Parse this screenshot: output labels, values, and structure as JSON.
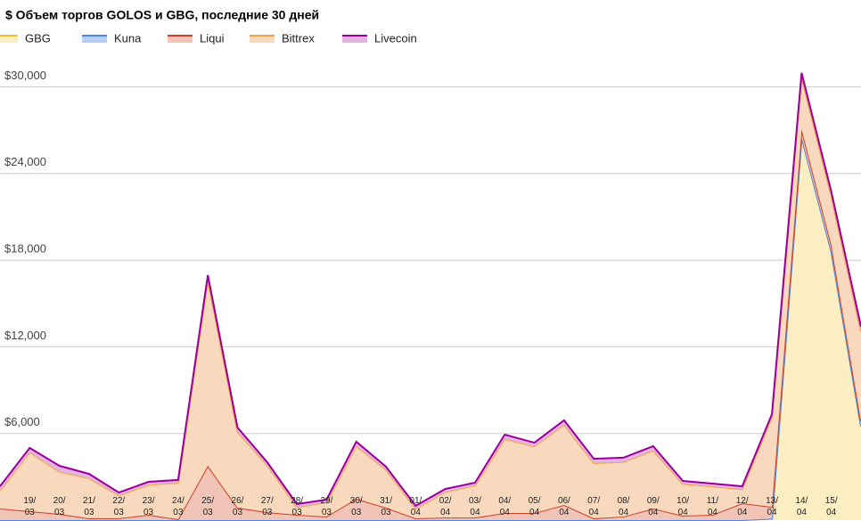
{
  "chart_data": {
    "type": "stacked_area",
    "title": "$ Объем торгов GOLOS и GBG, последние 30 дней",
    "categories": [
      null,
      "19/\n03",
      "20/\n03",
      "21/\n03",
      "22/\n03",
      "23/\n03",
      "24/\n03",
      "25/\n03",
      "26/\n03",
      "27/\n03",
      "28/\n03",
      "29/\n03",
      "30/\n03",
      "31/\n03",
      "01/\n04",
      "02/\n04",
      "03/\n04",
      "04/\n04",
      "05/\n04",
      "06/\n04",
      "07/\n04",
      "08/\n04",
      "09/\n04",
      "10/\n04",
      "11/\n04",
      "12/\n04",
      "13/\n04",
      "14/\n04",
      "15/\n04",
      null
    ],
    "series": [
      {
        "name": "GBG",
        "color": "#f1c232",
        "fill": "#fbeec3",
        "values": [
          0,
          0,
          0,
          0,
          0,
          0,
          0,
          0,
          0,
          0,
          0,
          0,
          0,
          0,
          0,
          0,
          0,
          0,
          0,
          0,
          0,
          0,
          0,
          0,
          0,
          0,
          100,
          26500,
          18600,
          6500
        ]
      },
      {
        "name": "Kuna",
        "color": "#4a86e8",
        "fill": "#b7cff5",
        "values": [
          0,
          0,
          0,
          0,
          0,
          0,
          0,
          0,
          0,
          0,
          0,
          0,
          0,
          0,
          0,
          0,
          0,
          0,
          0,
          0,
          0,
          0,
          0,
          0,
          0,
          0,
          0,
          0,
          0,
          0
        ]
      },
      {
        "name": "Liqui",
        "color": "#cc4125",
        "fill": "#f2c4b8",
        "values": [
          800,
          620,
          430,
          120,
          120,
          370,
          60,
          3760,
          860,
          550,
          370,
          250,
          1480,
          860,
          120,
          180,
          180,
          490,
          490,
          1050,
          120,
          250,
          800,
          310,
          370,
          1170,
          820,
          570,
          450,
          350
        ]
      },
      {
        "name": "Bittrex",
        "color": "#f6a04d",
        "fill": "#f9d9bd",
        "values": [
          1240,
          4080,
          2930,
          2780,
          1590,
          2080,
          2520,
          12900,
          5250,
          3260,
          540,
          970,
          3650,
          2640,
          670,
          1780,
          2210,
          5130,
          4620,
          5560,
          3830,
          3770,
          4020,
          2200,
          1960,
          970,
          6220,
          3590,
          3390,
          6190
        ]
      },
      {
        "name": "Livecoin",
        "color": "#990099",
        "fill": "#e3b4e3",
        "values": [
          300,
          300,
          400,
          300,
          200,
          200,
          200,
          300,
          300,
          200,
          200,
          200,
          300,
          200,
          200,
          200,
          200,
          300,
          250,
          300,
          300,
          300,
          300,
          200,
          200,
          200,
          200,
          300,
          300,
          350
        ]
      }
    ],
    "ylim": [
      0,
      32000
    ],
    "yticks": [
      {
        "value": 6000,
        "label": "$6,000"
      },
      {
        "value": 12000,
        "label": "$12,000"
      },
      {
        "value": 18000,
        "label": "$18,000"
      },
      {
        "value": 24000,
        "label": "$24,000"
      },
      {
        "value": 30000,
        "label": "$30,000"
      }
    ],
    "grid": true,
    "legend": "top-left"
  }
}
